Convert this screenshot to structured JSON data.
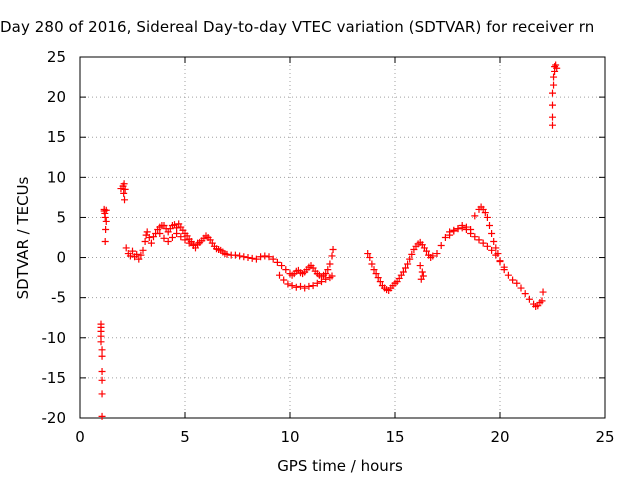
{
  "chart_data": {
    "type": "scatter",
    "title": "Day 280 of 2016, Sidereal Day-to-day VTEC variation (SDTVAR) for receiver rn",
    "xlabel": "GPS time / hours",
    "ylabel": "SDTVAR / TECUs",
    "xlim": [
      0,
      25
    ],
    "ylim": [
      -20,
      25
    ],
    "xticks": [
      0,
      5,
      10,
      15,
      20,
      25
    ],
    "yticks": [
      -20,
      -15,
      -10,
      -5,
      0,
      5,
      10,
      15,
      20,
      25
    ],
    "grid": true,
    "marker": "+",
    "color": "#ff0000",
    "series": [
      {
        "points": [
          [
            1.0,
            -8.3
          ],
          [
            1.0,
            -8.7
          ],
          [
            1.0,
            -9.2
          ],
          [
            1.0,
            -9.8
          ],
          [
            1.0,
            -10.5
          ],
          [
            1.05,
            -11.5
          ],
          [
            1.05,
            -12.3
          ],
          [
            1.05,
            -14.2
          ],
          [
            1.05,
            -15.3
          ],
          [
            1.05,
            -17.0
          ],
          [
            1.05,
            -19.8
          ],
          [
            1.15,
            6.0
          ],
          [
            1.18,
            5.5
          ],
          [
            1.2,
            5.0
          ],
          [
            1.25,
            4.5
          ],
          [
            1.22,
            3.5
          ],
          [
            1.2,
            2.0
          ],
          [
            1.15,
            5.8
          ],
          [
            1.25,
            5.9
          ],
          [
            1.95,
            8.6
          ],
          [
            2.05,
            8.9
          ],
          [
            2.1,
            9.2
          ],
          [
            2.15,
            8.5
          ],
          [
            2.08,
            8.0
          ],
          [
            2.12,
            7.2
          ],
          [
            2.2,
            1.2
          ],
          [
            2.3,
            0.5
          ],
          [
            2.4,
            0.2
          ],
          [
            2.5,
            0.8
          ],
          [
            2.6,
            0.1
          ],
          [
            2.7,
            0.4
          ],
          [
            2.8,
            -0.2
          ],
          [
            2.9,
            0.3
          ],
          [
            3.0,
            0.9
          ],
          [
            3.1,
            2.0
          ],
          [
            3.15,
            2.8
          ],
          [
            3.2,
            3.2
          ],
          [
            3.3,
            2.5
          ],
          [
            3.4,
            1.8
          ],
          [
            3.5,
            2.6
          ],
          [
            3.6,
            3.0
          ],
          [
            3.7,
            3.5
          ],
          [
            3.8,
            3.8
          ],
          [
            3.9,
            4.0
          ],
          [
            4.0,
            4.0
          ],
          [
            4.1,
            3.6
          ],
          [
            4.2,
            3.2
          ],
          [
            4.3,
            3.6
          ],
          [
            4.4,
            4.0
          ],
          [
            4.5,
            4.1
          ],
          [
            4.6,
            3.7
          ],
          [
            4.7,
            4.2
          ],
          [
            4.8,
            3.8
          ],
          [
            4.9,
            3.4
          ],
          [
            5.0,
            3.0
          ],
          [
            5.1,
            2.7
          ],
          [
            5.2,
            2.3
          ],
          [
            5.3,
            2.0
          ],
          [
            5.4,
            1.5
          ],
          [
            5.5,
            1.2
          ],
          [
            5.6,
            1.6
          ],
          [
            5.7,
            1.9
          ],
          [
            5.8,
            2.1
          ],
          [
            5.9,
            2.4
          ],
          [
            6.0,
            2.7
          ],
          [
            6.1,
            2.5
          ],
          [
            6.2,
            2.2
          ],
          [
            6.3,
            1.8
          ],
          [
            6.4,
            1.4
          ],
          [
            6.5,
            1.1
          ],
          [
            6.6,
            1.0
          ],
          [
            6.7,
            0.9
          ],
          [
            6.8,
            0.7
          ],
          [
            6.9,
            0.5
          ],
          [
            7.0,
            0.4
          ],
          [
            7.2,
            0.3
          ],
          [
            7.4,
            0.3
          ],
          [
            7.6,
            0.2
          ],
          [
            7.8,
            0.1
          ],
          [
            8.0,
            0.0
          ],
          [
            8.2,
            -0.1
          ],
          [
            8.4,
            -0.2
          ],
          [
            8.6,
            0.1
          ],
          [
            8.8,
            0.2
          ],
          [
            9.0,
            0.1
          ],
          [
            9.2,
            -0.2
          ],
          [
            9.4,
            -0.6
          ],
          [
            9.6,
            -1.0
          ],
          [
            9.8,
            -1.5
          ],
          [
            10.0,
            -2.0
          ],
          [
            10.1,
            -2.2
          ],
          [
            10.2,
            -2.0
          ],
          [
            10.3,
            -1.7
          ],
          [
            10.4,
            -1.6
          ],
          [
            10.5,
            -1.9
          ],
          [
            10.6,
            -2.0
          ],
          [
            10.7,
            -1.8
          ],
          [
            10.8,
            -1.5
          ],
          [
            10.9,
            -1.2
          ],
          [
            11.0,
            -1.0
          ],
          [
            11.1,
            -1.3
          ],
          [
            11.2,
            -1.7
          ],
          [
            11.3,
            -2.0
          ],
          [
            11.4,
            -2.2
          ],
          [
            11.5,
            -2.4
          ],
          [
            11.6,
            -2.2
          ],
          [
            11.7,
            -2.0
          ],
          [
            11.8,
            -1.5
          ],
          [
            11.9,
            -0.8
          ],
          [
            12.0,
            0.2
          ],
          [
            12.05,
            1.0
          ],
          [
            3.8,
            3.0
          ],
          [
            4.0,
            2.4
          ],
          [
            4.2,
            2.0
          ],
          [
            4.4,
            2.5
          ],
          [
            4.6,
            3.0
          ],
          [
            4.8,
            2.6
          ],
          [
            5.0,
            2.2
          ],
          [
            5.2,
            1.8
          ],
          [
            5.4,
            1.6
          ],
          [
            5.6,
            1.8
          ],
          [
            9.5,
            -2.2
          ],
          [
            9.7,
            -2.8
          ],
          [
            9.9,
            -3.3
          ],
          [
            10.1,
            -3.5
          ],
          [
            10.3,
            -3.7
          ],
          [
            10.5,
            -3.6
          ],
          [
            10.7,
            -3.8
          ],
          [
            10.9,
            -3.6
          ],
          [
            11.1,
            -3.5
          ],
          [
            11.3,
            -3.2
          ],
          [
            11.5,
            -3.0
          ],
          [
            11.7,
            -2.7
          ],
          [
            11.9,
            -2.5
          ],
          [
            12.0,
            -2.3
          ],
          [
            13.7,
            0.5
          ],
          [
            13.8,
            0.0
          ],
          [
            13.9,
            -0.8
          ],
          [
            14.0,
            -1.5
          ],
          [
            14.1,
            -2.0
          ],
          [
            14.2,
            -2.5
          ],
          [
            14.3,
            -3.0
          ],
          [
            14.4,
            -3.5
          ],
          [
            14.5,
            -3.8
          ],
          [
            14.6,
            -4.0
          ],
          [
            14.7,
            -4.1
          ],
          [
            14.8,
            -3.8
          ],
          [
            14.9,
            -3.5
          ],
          [
            15.0,
            -3.2
          ],
          [
            15.1,
            -3.0
          ],
          [
            15.2,
            -2.6
          ],
          [
            15.3,
            -2.2
          ],
          [
            15.4,
            -1.8
          ],
          [
            15.5,
            -1.3
          ],
          [
            15.6,
            -0.8
          ],
          [
            15.7,
            -0.2
          ],
          [
            15.8,
            0.4
          ],
          [
            15.9,
            1.0
          ],
          [
            16.0,
            1.4
          ],
          [
            16.1,
            1.7
          ],
          [
            16.2,
            1.9
          ],
          [
            16.3,
            1.6
          ],
          [
            16.4,
            1.2
          ],
          [
            16.5,
            0.8
          ],
          [
            16.6,
            0.3
          ],
          [
            16.7,
            0.0
          ],
          [
            16.2,
            -1.0
          ],
          [
            16.3,
            -1.8
          ],
          [
            16.25,
            -2.7
          ],
          [
            16.35,
            -2.3
          ],
          [
            16.8,
            0.2
          ],
          [
            17.0,
            0.5
          ],
          [
            17.2,
            1.5
          ],
          [
            17.4,
            2.5
          ],
          [
            17.6,
            3.2
          ],
          [
            17.8,
            3.4
          ],
          [
            18.0,
            3.6
          ],
          [
            18.2,
            4.0
          ],
          [
            18.4,
            3.8
          ],
          [
            18.6,
            3.5
          ],
          [
            18.8,
            5.2
          ],
          [
            19.0,
            6.0
          ],
          [
            19.1,
            6.3
          ],
          [
            19.2,
            6.0
          ],
          [
            19.3,
            5.6
          ],
          [
            19.4,
            5.0
          ],
          [
            19.5,
            4.0
          ],
          [
            19.6,
            3.0
          ],
          [
            19.7,
            2.0
          ],
          [
            19.8,
            1.2
          ],
          [
            19.9,
            0.5
          ],
          [
            20.0,
            -0.5
          ],
          [
            20.2,
            -1.5
          ],
          [
            20.4,
            -2.2
          ],
          [
            20.6,
            -2.8
          ],
          [
            20.8,
            -3.2
          ],
          [
            21.0,
            -3.8
          ],
          [
            21.2,
            -4.5
          ],
          [
            21.4,
            -5.2
          ],
          [
            21.6,
            -5.8
          ],
          [
            21.7,
            -6.1
          ],
          [
            21.8,
            -6.0
          ],
          [
            21.9,
            -5.6
          ],
          [
            22.0,
            -5.4
          ],
          [
            22.05,
            -4.3
          ],
          [
            17.6,
            2.8
          ],
          [
            17.8,
            3.3
          ],
          [
            18.0,
            3.6
          ],
          [
            18.2,
            3.7
          ],
          [
            18.4,
            3.5
          ],
          [
            18.6,
            3.0
          ],
          [
            18.8,
            2.6
          ],
          [
            19.0,
            2.2
          ],
          [
            19.2,
            1.8
          ],
          [
            19.4,
            1.4
          ],
          [
            19.6,
            0.9
          ],
          [
            19.8,
            0.3
          ],
          [
            20.0,
            -0.4
          ],
          [
            20.2,
            -1.2
          ],
          [
            22.5,
            16.5
          ],
          [
            22.5,
            17.5
          ],
          [
            22.5,
            19.0
          ],
          [
            22.5,
            20.5
          ],
          [
            22.55,
            21.5
          ],
          [
            22.55,
            22.5
          ],
          [
            22.6,
            23.2
          ],
          [
            22.6,
            23.8
          ],
          [
            22.65,
            24.0
          ],
          [
            22.7,
            23.6
          ]
        ]
      }
    ]
  }
}
